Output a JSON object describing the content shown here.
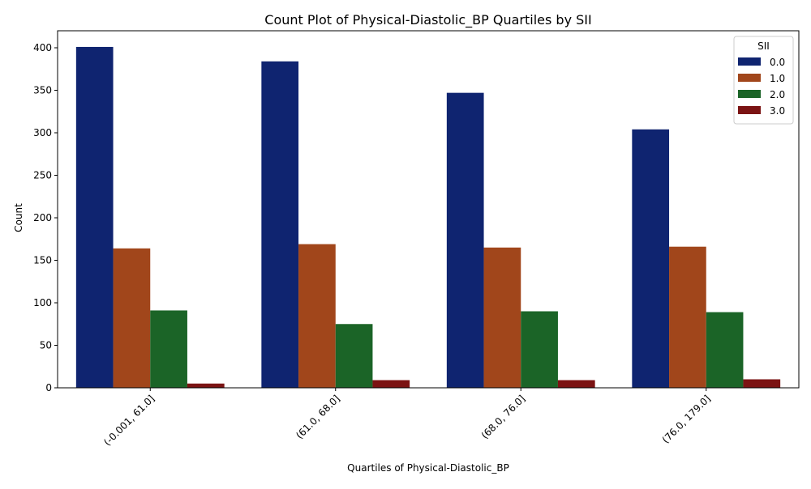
{
  "chart_data": {
    "type": "bar",
    "title": "Count Plot of Physical-Diastolic_BP Quartiles by SII",
    "xlabel": "Quartiles of Physical-Diastolic_BP",
    "ylabel": "Count",
    "categories": [
      "(-0.001, 61.0]",
      "(61.0, 68.0]",
      "(68.0, 76.0]",
      "(76.0, 179.0]"
    ],
    "ylim": [
      0,
      420
    ],
    "yticks": [
      0,
      50,
      100,
      150,
      200,
      250,
      300,
      350,
      400
    ],
    "legend": {
      "title": "SII",
      "position": "top-right"
    },
    "series": [
      {
        "name": "0.0",
        "color": "#0f2470",
        "values": [
          401,
          384,
          347,
          304
        ]
      },
      {
        "name": "1.0",
        "color": "#a1461b",
        "values": [
          164,
          169,
          165,
          166
        ]
      },
      {
        "name": "2.0",
        "color": "#1b6427",
        "values": [
          91,
          75,
          90,
          89
        ]
      },
      {
        "name": "3.0",
        "color": "#7b1313",
        "values": [
          5,
          9,
          9,
          10
        ]
      }
    ]
  }
}
